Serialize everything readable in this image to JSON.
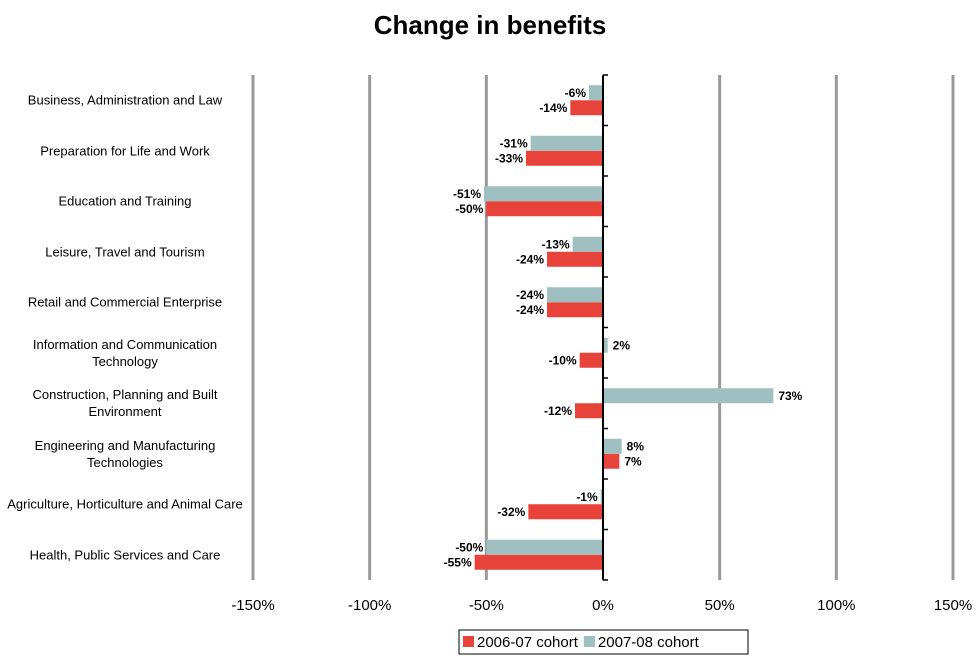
{
  "chart_data": {
    "type": "hbar",
    "title": "Change in benefits",
    "categories": [
      "Business, Administration and Law",
      "Preparation for Life and Work",
      "Education and Training",
      "Leisure, Travel and Tourism",
      "Retail and Commercial Enterprise",
      "Information and Communication Technology",
      "Construction, Planning and Built Environment",
      "Engineering and Manufacturing Technologies",
      "Agriculture, Horticulture and Animal Care",
      "Health, Public Services and Care"
    ],
    "series": [
      {
        "name": "2006-07 cohort",
        "color": "#e8433a",
        "values": [
          -14,
          -33,
          -50,
          -24,
          -24,
          -10,
          -12,
          7,
          -32,
          -55
        ],
        "value_labels": [
          "-14%",
          "-33%",
          "-50%",
          "-24%",
          "-24%",
          "-10%",
          "-12%",
          "7%",
          "-32%",
          "-55%"
        ]
      },
      {
        "name": "2007-08 cohort",
        "color": "#9fbfc0",
        "values": [
          -6,
          -31,
          -51,
          -13,
          -24,
          2,
          73,
          8,
          -1,
          -50
        ],
        "value_labels": [
          "-6%",
          "-31%",
          "-51%",
          "-13%",
          "-24%",
          "2%",
          "73%",
          "8%",
          "-1%",
          "-50%"
        ]
      }
    ],
    "xlim": [
      -150,
      150
    ],
    "xticks": [
      {
        "value": -150,
        "label": "-150%"
      },
      {
        "value": -100,
        "label": "-100%"
      },
      {
        "value": -50,
        "label": "-50%"
      },
      {
        "value": 0,
        "label": "0%"
      },
      {
        "value": 50,
        "label": "50%"
      },
      {
        "value": 100,
        "label": "100%"
      },
      {
        "value": 150,
        "label": "150%"
      }
    ],
    "grid": true,
    "legend": "bottom"
  }
}
